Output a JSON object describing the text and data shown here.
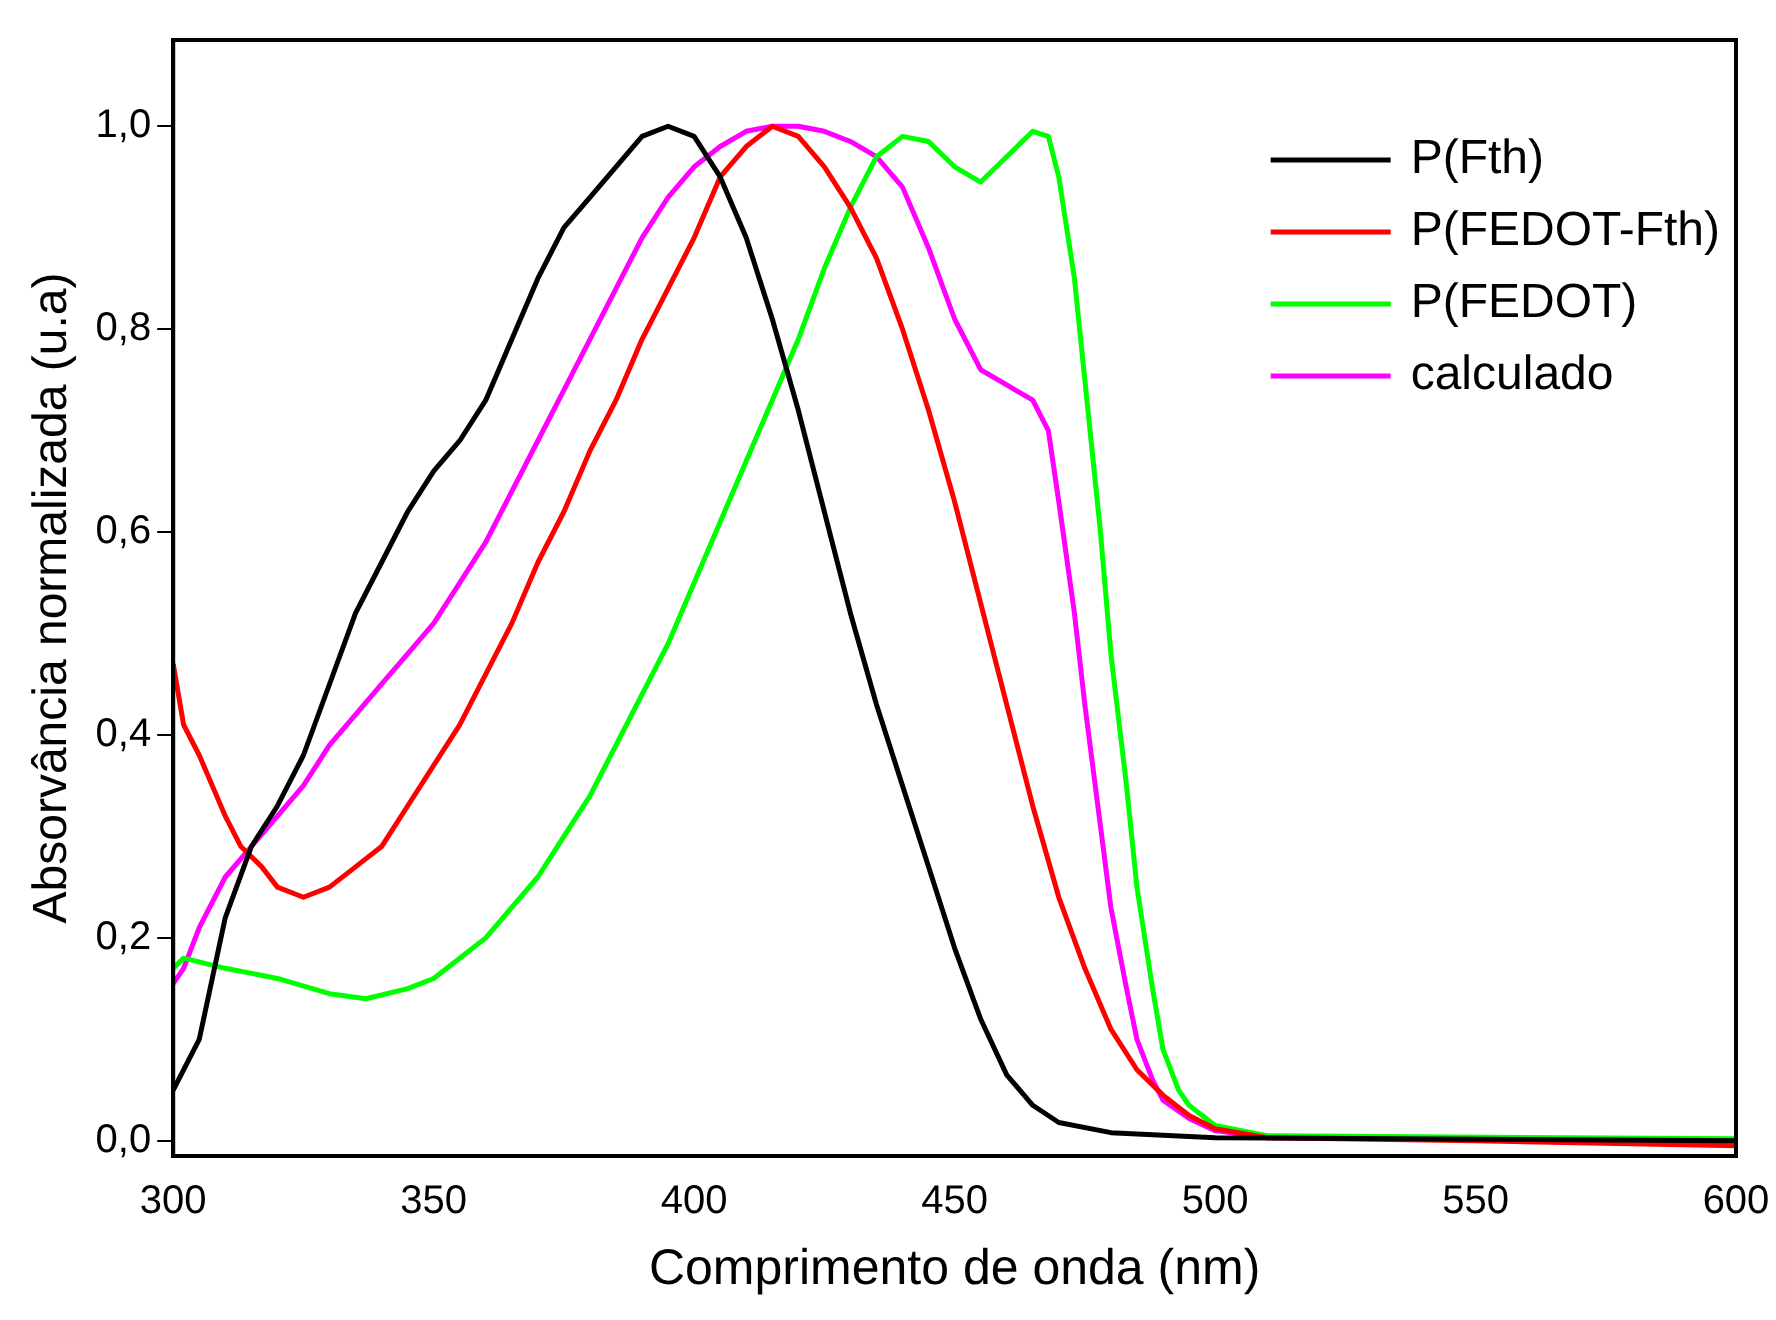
{
  "chart_data": {
    "type": "line",
    "xlabel": "Comprimento de onda (nm)",
    "ylabel": "Absorvância normalizada (u.a)",
    "xlim": [
      300,
      600
    ],
    "xticks": [
      300,
      350,
      400,
      450,
      500,
      550,
      600
    ],
    "ylim": [
      -0.015,
      1.085
    ],
    "yticks": [
      {
        "value": 0,
        "label": "0,0"
      },
      {
        "value": 0.2,
        "label": "0,2"
      },
      {
        "value": 0.4,
        "label": "0,4"
      },
      {
        "value": 0.6,
        "label": "0,6"
      },
      {
        "value": 0.8,
        "label": "0,8"
      },
      {
        "value": 1,
        "label": "1,0"
      }
    ],
    "grid": false,
    "legend": "top right",
    "marker": "none",
    "line_style": "solid",
    "series": [
      {
        "name": "P(Fth)",
        "color": "#000000",
        "x": [
          300,
          305,
          310,
          315,
          320,
          325,
          330,
          335,
          340,
          345,
          350,
          355,
          360,
          365,
          370,
          375,
          380,
          385,
          390,
          395,
          400,
          405,
          410,
          415,
          420,
          425,
          430,
          435,
          440,
          445,
          450,
          455,
          460,
          465,
          470,
          480,
          500,
          600
        ],
        "values": [
          0.05,
          0.1,
          0.22,
          0.29,
          0.33,
          0.38,
          0.45,
          0.52,
          0.57,
          0.62,
          0.66,
          0.69,
          0.73,
          0.79,
          0.85,
          0.9,
          0.93,
          0.96,
          0.99,
          1.0,
          0.99,
          0.95,
          0.89,
          0.81,
          0.72,
          0.62,
          0.52,
          0.43,
          0.35,
          0.27,
          0.19,
          0.12,
          0.065,
          0.035,
          0.018,
          0.008,
          0.003,
          0.0
        ]
      },
      {
        "name": "P(FEDOT-Fth)",
        "color": "#ff0000",
        "x": [
          300,
          302,
          305,
          310,
          313,
          317,
          320,
          325,
          330,
          335,
          340,
          345,
          350,
          355,
          360,
          365,
          370,
          375,
          380,
          385,
          390,
          395,
          400,
          405,
          410,
          415,
          420,
          425,
          430,
          435,
          440,
          445,
          450,
          455,
          460,
          465,
          470,
          475,
          480,
          485,
          490,
          495,
          500,
          510,
          550,
          600
        ],
        "values": [
          0.47,
          0.41,
          0.38,
          0.32,
          0.29,
          0.27,
          0.25,
          0.24,
          0.25,
          0.27,
          0.29,
          0.33,
          0.37,
          0.41,
          0.46,
          0.51,
          0.57,
          0.62,
          0.68,
          0.73,
          0.79,
          0.84,
          0.89,
          0.95,
          0.98,
          1.0,
          0.99,
          0.96,
          0.92,
          0.87,
          0.8,
          0.72,
          0.63,
          0.53,
          0.43,
          0.33,
          0.24,
          0.17,
          0.11,
          0.07,
          0.045,
          0.025,
          0.012,
          0.003,
          0.0,
          -0.005
        ]
      },
      {
        "name": "P(FEDOT)",
        "color": "#00ff00",
        "x": [
          300,
          302,
          310,
          320,
          330,
          337,
          345,
          350,
          355,
          360,
          365,
          370,
          375,
          380,
          385,
          390,
          395,
          400,
          405,
          410,
          415,
          420,
          425,
          430,
          435,
          440,
          445,
          450,
          455,
          460,
          465,
          468,
          470,
          473,
          475,
          478,
          480,
          483,
          485,
          488,
          490,
          493,
          495,
          500,
          510,
          600
        ],
        "values": [
          0.17,
          0.18,
          0.17,
          0.16,
          0.145,
          0.14,
          0.15,
          0.16,
          0.18,
          0.2,
          0.23,
          0.26,
          0.3,
          0.34,
          0.39,
          0.44,
          0.49,
          0.55,
          0.61,
          0.67,
          0.73,
          0.79,
          0.86,
          0.92,
          0.97,
          0.99,
          0.985,
          0.96,
          0.945,
          0.97,
          0.995,
          0.99,
          0.95,
          0.85,
          0.75,
          0.6,
          0.48,
          0.35,
          0.25,
          0.15,
          0.09,
          0.05,
          0.035,
          0.015,
          0.005,
          0.002
        ]
      },
      {
        "name": "calculado",
        "color": "#ff00ff",
        "x": [
          300,
          302,
          305,
          310,
          315,
          320,
          325,
          330,
          335,
          340,
          345,
          350,
          355,
          360,
          365,
          370,
          375,
          380,
          385,
          390,
          395,
          400,
          405,
          410,
          415,
          420,
          425,
          430,
          435,
          440,
          445,
          450,
          455,
          460,
          465,
          468,
          470,
          473,
          475,
          478,
          480,
          483,
          485,
          488,
          490,
          495,
          500,
          510,
          600
        ],
        "values": [
          0.155,
          0.17,
          0.21,
          0.26,
          0.29,
          0.32,
          0.35,
          0.39,
          0.42,
          0.45,
          0.48,
          0.51,
          0.55,
          0.59,
          0.64,
          0.69,
          0.74,
          0.79,
          0.84,
          0.89,
          0.93,
          0.96,
          0.98,
          0.995,
          1.0,
          1.0,
          0.995,
          0.985,
          0.97,
          0.94,
          0.88,
          0.81,
          0.76,
          0.745,
          0.73,
          0.7,
          0.63,
          0.52,
          0.43,
          0.31,
          0.23,
          0.15,
          0.1,
          0.06,
          0.04,
          0.022,
          0.01,
          0.003,
          0.0
        ]
      }
    ]
  }
}
